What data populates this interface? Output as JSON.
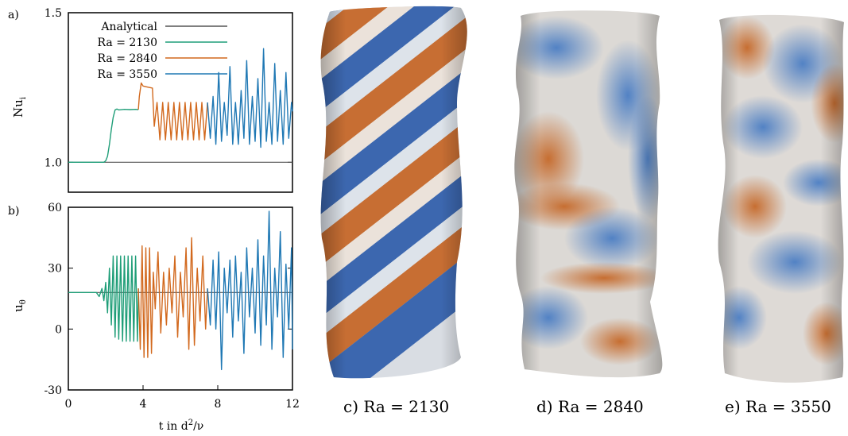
{
  "chart_data": [
    {
      "type": "line",
      "panel": "a)",
      "ylabel": "Nu",
      "ylabel_sub": "i",
      "xlim": [
        0,
        12
      ],
      "ylim": [
        0.9,
        1.5
      ],
      "yticks": [
        "1.0",
        "1.5"
      ],
      "ytick_values": [
        1.0,
        1.5
      ],
      "grid": false,
      "legend_position": "top-left",
      "series": [
        {
          "name": "Analytical",
          "color": "#555555",
          "x": [
            0,
            12
          ],
          "y": [
            1.0,
            1.0
          ]
        },
        {
          "name": "Ra = 2130",
          "color": "#1f9e78",
          "x": [
            0,
            1.9,
            2.0,
            2.1,
            2.2,
            2.3,
            2.4,
            2.5,
            2.6,
            2.7,
            3.0,
            3.3,
            3.6,
            3.75
          ],
          "y": [
            1.0,
            1.0,
            1.005,
            1.02,
            1.06,
            1.11,
            1.15,
            1.175,
            1.178,
            1.175,
            1.177,
            1.176,
            1.177,
            1.176
          ]
        },
        {
          "name": "Ra = 2840",
          "color": "#d2691e",
          "x": [
            3.75,
            3.8,
            3.9,
            4.0,
            4.2,
            4.5,
            4.6,
            4.75,
            4.9,
            5.05,
            5.2,
            5.35,
            5.5,
            5.65,
            5.8,
            5.95,
            6.1,
            6.25,
            6.4,
            6.55,
            6.7,
            6.85,
            7.0,
            7.15,
            7.3,
            7.45
          ],
          "y": [
            1.176,
            1.22,
            1.265,
            1.255,
            1.252,
            1.248,
            1.12,
            1.2,
            1.075,
            1.2,
            1.075,
            1.2,
            1.075,
            1.2,
            1.075,
            1.2,
            1.075,
            1.2,
            1.075,
            1.2,
            1.075,
            1.2,
            1.075,
            1.2,
            1.075,
            1.2
          ]
        },
        {
          "name": "Ra = 3550",
          "color": "#1f78b4",
          "x": [
            7.45,
            7.6,
            7.75,
            7.9,
            8.05,
            8.2,
            8.35,
            8.5,
            8.65,
            8.8,
            8.95,
            9.1,
            9.25,
            9.4,
            9.55,
            9.7,
            9.85,
            10.0,
            10.15,
            10.3,
            10.45,
            10.6,
            10.75,
            10.9,
            11.05,
            11.2,
            11.35,
            11.5,
            11.65,
            11.8,
            11.95,
            12.0
          ],
          "y": [
            1.2,
            1.08,
            1.22,
            1.06,
            1.3,
            1.07,
            1.2,
            1.09,
            1.32,
            1.06,
            1.2,
            1.06,
            1.24,
            1.08,
            1.34,
            1.06,
            1.22,
            1.07,
            1.28,
            1.05,
            1.38,
            1.07,
            1.2,
            1.06,
            1.33,
            1.07,
            1.24,
            1.06,
            1.3,
            1.08,
            1.2,
            1.17
          ]
        }
      ]
    },
    {
      "type": "line",
      "panel": "b)",
      "ylabel": "u",
      "ylabel_sub": "θ",
      "xlabel": "t in d",
      "xlabel_sup": "2",
      "xlabel_tail": "/ν",
      "xlim": [
        0,
        12
      ],
      "ylim": [
        -30,
        60
      ],
      "yticks": [
        "-30",
        "0",
        "30",
        "60"
      ],
      "ytick_values": [
        -30,
        0,
        30,
        60
      ],
      "xticks": [
        "0",
        "4",
        "8",
        "12"
      ],
      "xtick_values": [
        0,
        4,
        8,
        12
      ],
      "grid": false,
      "series": [
        {
          "name": "Analytical",
          "color": "#555555",
          "x": [
            0,
            12
          ],
          "y": [
            18,
            18
          ]
        },
        {
          "name": "Ra = 2130",
          "color": "#1f9e78",
          "x": [
            0,
            1.5,
            1.65,
            1.8,
            1.9,
            2.0,
            2.1,
            2.2,
            2.3,
            2.4,
            2.5,
            2.6,
            2.7,
            2.8,
            2.9,
            3.0,
            3.1,
            3.2,
            3.3,
            3.4,
            3.5,
            3.6,
            3.7,
            3.75
          ],
          "y": [
            18,
            18,
            16,
            20,
            14,
            23,
            8,
            30,
            2,
            36,
            -4,
            36,
            -5,
            36,
            -6,
            36,
            -6,
            36,
            -6,
            36,
            -6,
            36,
            -6,
            20
          ]
        },
        {
          "name": "Ra = 2840",
          "color": "#d2691e",
          "x": [
            3.75,
            3.85,
            3.95,
            4.05,
            4.15,
            4.25,
            4.35,
            4.45,
            4.55,
            4.65,
            4.8,
            4.95,
            5.1,
            5.25,
            5.4,
            5.55,
            5.7,
            5.85,
            6.0,
            6.15,
            6.3,
            6.45,
            6.6,
            6.75,
            6.9,
            7.05,
            7.2,
            7.35,
            7.45
          ],
          "y": [
            20,
            -10,
            41,
            -14,
            40,
            -14,
            40,
            -12,
            28,
            10,
            38,
            -2,
            28,
            2,
            30,
            8,
            36,
            -4,
            28,
            6,
            40,
            -10,
            45,
            -8,
            30,
            4,
            36,
            0,
            20
          ]
        },
        {
          "name": "Ra = 3550",
          "color": "#1f78b4",
          "x": [
            7.45,
            7.6,
            7.75,
            7.9,
            8.05,
            8.2,
            8.35,
            8.5,
            8.65,
            8.8,
            8.95,
            9.1,
            9.25,
            9.4,
            9.55,
            9.7,
            9.85,
            10.0,
            10.15,
            10.3,
            10.45,
            10.6,
            10.75,
            10.9,
            11.05,
            11.2,
            11.35,
            11.5,
            11.65,
            11.8,
            11.95,
            12.0
          ],
          "y": [
            20,
            2,
            34,
            0,
            38,
            -20,
            30,
            8,
            34,
            -4,
            36,
            4,
            28,
            -12,
            40,
            6,
            30,
            -2,
            44,
            -8,
            36,
            2,
            58,
            -10,
            30,
            6,
            48,
            -14,
            32,
            0,
            40,
            -10
          ]
        }
      ]
    }
  ],
  "panels": [
    {
      "caption": "c) Ra = 2130"
    },
    {
      "caption": "d) Ra = 2840"
    },
    {
      "caption": "e) Ra = 3550"
    }
  ],
  "colors": {
    "orange": "#c4621f",
    "blue": "#2a5aa8",
    "light": "#eae6e0"
  }
}
